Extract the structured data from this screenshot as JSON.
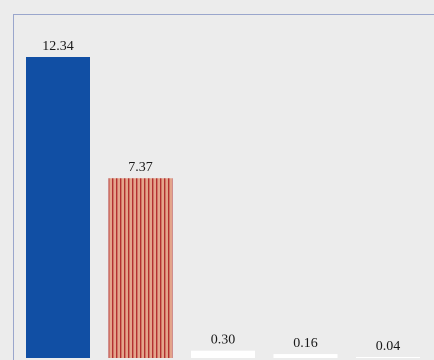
{
  "chart_data": {
    "type": "bar",
    "categories": [
      "",
      "",
      "",
      "",
      ""
    ],
    "values": [
      12.34,
      7.37,
      0.3,
      0.16,
      0.04
    ],
    "value_labels": [
      "12.34",
      "7.37",
      "0.30",
      "0.16",
      "0.04"
    ],
    "bar_styles": [
      "solid",
      "vertical-stripes",
      "solid",
      "solid",
      "solid"
    ],
    "bar_colors": [
      "#114fa4",
      "#e4a48b",
      "#ffffff",
      "#ffffff",
      "#ffffff"
    ],
    "stripe_color": "#b33030",
    "frame_color": "#9aa6cc",
    "background_color": "#ececec",
    "grid": false,
    "legend": "none",
    "title": "",
    "xlabel": "",
    "ylabel": ""
  }
}
